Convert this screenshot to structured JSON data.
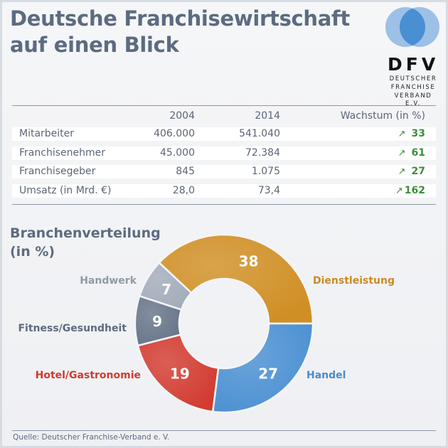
{
  "header": {
    "title_line1": "Deutsche Franchisewirtschaft",
    "title_line2": "auf einen Blick"
  },
  "logo": {
    "abbr": "DFV",
    "line1": "DEUTSCHER",
    "line2": "FRANCHISE",
    "line3": "VERBAND E.V.",
    "colors": {
      "outer": "#9dc0e7",
      "overlap": "#4a8fd2"
    }
  },
  "table": {
    "headers": [
      "",
      "2004",
      "2014",
      "Wachstum (in %)"
    ],
    "rows": [
      {
        "label": "Mitarbeiter",
        "v2004": "406.000",
        "v2014": "541.040",
        "growth": "33",
        "trend_icon": "↗"
      },
      {
        "label": "Franchisenehmer",
        "v2004": "45.000",
        "v2014": "72.384",
        "growth": "61",
        "trend_icon": "↗"
      },
      {
        "label": "Franchisegeber",
        "v2004": "845",
        "v2014": "1.075",
        "growth": "27",
        "trend_icon": "↗"
      },
      {
        "label": "Umsatz (in Mrd. €)",
        "v2004": "28,0",
        "v2014": "73,4",
        "growth": "162",
        "trend_icon": "↗"
      }
    ],
    "growth_color": "#3a8f3a"
  },
  "section": {
    "title_line1": "Branchenverteilung",
    "title_line2": "(in %)"
  },
  "chart_data": {
    "type": "pie",
    "variant": "donut",
    "title": "Branchenverteilung (in %)",
    "start": "east, counterclockwise",
    "slices": [
      {
        "label": "Dienstleistung",
        "value": 38,
        "color": "#d08f25",
        "label_color": "#c98a26"
      },
      {
        "label": "Handwerk",
        "value": 7,
        "color": "#a2acb9",
        "label_color": "#8f99a8"
      },
      {
        "label": "Fitness/Gesundheit",
        "value": 9,
        "color": "#67758a",
        "label_color": "#5c6b80"
      },
      {
        "label": "Hotel/Gastronomie",
        "value": 19,
        "color": "#d23b30",
        "label_color": "#cf3a2e"
      },
      {
        "label": "Handel",
        "value": 27,
        "color": "#4b90d2",
        "label_color": "#4a8bc9"
      }
    ]
  },
  "footer": {
    "source": "Quelle: Deutscher Franchise-Verband e. V."
  }
}
